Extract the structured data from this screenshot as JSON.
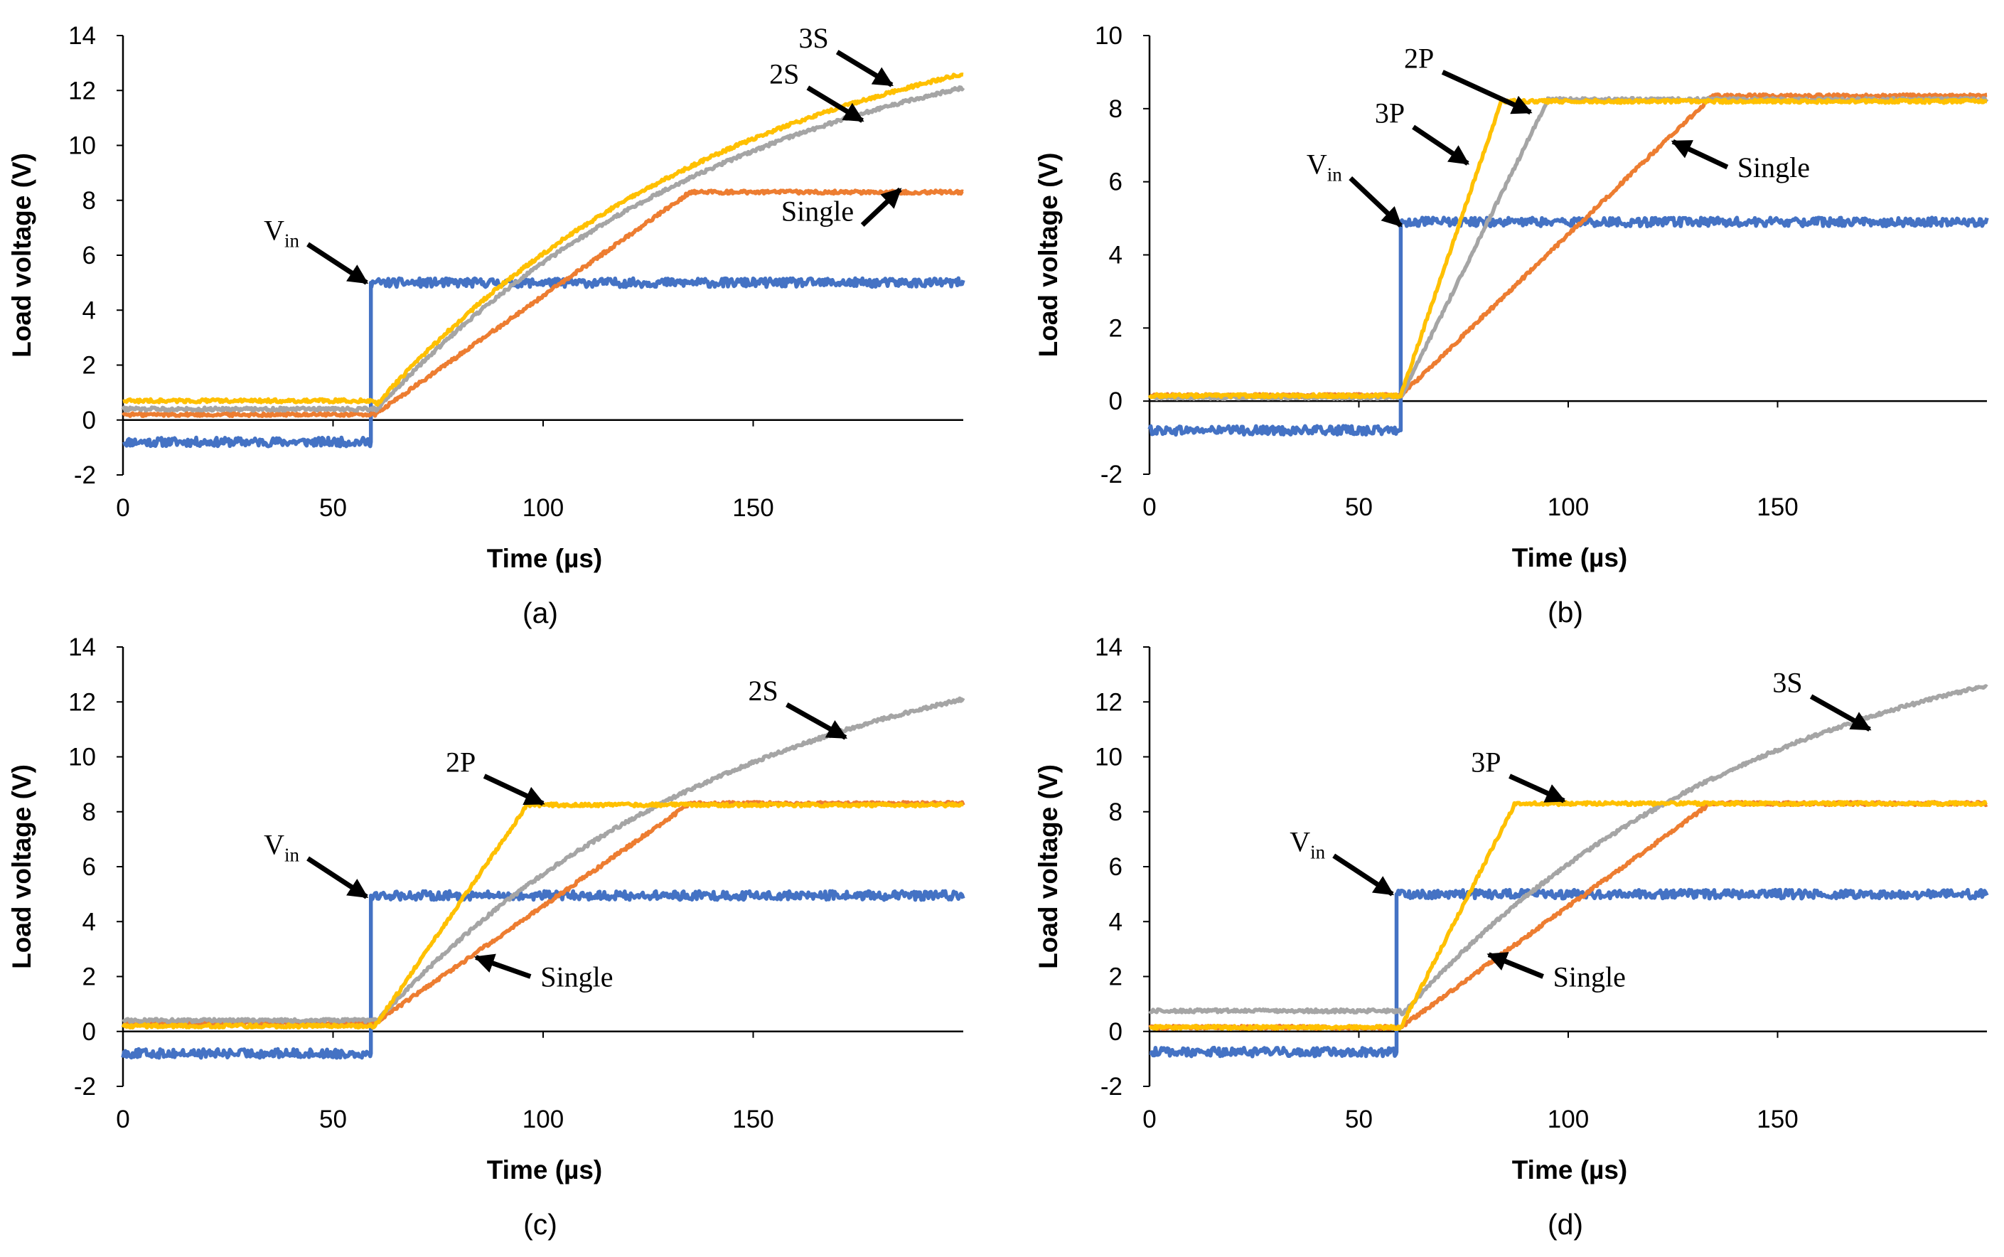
{
  "chart_data": [
    {
      "type": "line",
      "caption": "(a)",
      "xlabel": "Time (µs)",
      "ylabel": "Load voltage (V)",
      "xlim": [
        0,
        200
      ],
      "ylim": [
        -2,
        14
      ],
      "xticks": [
        0,
        50,
        100,
        150
      ],
      "yticks": [
        -2,
        0,
        2,
        4,
        6,
        8,
        10,
        12,
        14
      ],
      "series": [
        {
          "name": "Vin",
          "color": "#4472C4",
          "pre": -0.8,
          "step_at": 59,
          "final": 5.0,
          "kind": "step"
        },
        {
          "name": "Single",
          "color": "#ED7D31",
          "pre": 0.2,
          "start": 60,
          "kind": "ramp",
          "x_end": 135,
          "v_end": 8.3,
          "final": 8.3
        },
        {
          "name": "2S",
          "color": "#A5A5A5",
          "pre": 0.4,
          "start": 60,
          "kind": "rise",
          "v_start": 0.3,
          "x_end": 200,
          "v_end": 12.1
        },
        {
          "name": "3S",
          "color": "#FFC000",
          "pre": 0.7,
          "start": 60,
          "kind": "rise",
          "v_start": 0.5,
          "x_end": 200,
          "v_end": 12.6
        }
      ],
      "annotations": [
        {
          "text": "3S",
          "sub": "",
          "at": [
            183,
            12.2
          ],
          "from": [
            170,
            13.4
          ]
        },
        {
          "text": "2S",
          "sub": "",
          "at": [
            176,
            10.9
          ],
          "from": [
            163,
            12.1
          ]
        },
        {
          "text": "Single",
          "sub": "",
          "at": [
            185,
            8.4
          ],
          "from": [
            176,
            7.1
          ]
        },
        {
          "text": "V",
          "sub": "in",
          "at": [
            58,
            5.0
          ],
          "from": [
            44,
            6.4
          ]
        }
      ]
    },
    {
      "type": "line",
      "caption": "(b)",
      "xlabel": "Time (µs)",
      "ylabel": "Load voltage (V)",
      "xlim": [
        0,
        200
      ],
      "ylim": [
        -2,
        10
      ],
      "xticks": [
        0,
        50,
        100,
        150
      ],
      "yticks": [
        -2,
        0,
        2,
        4,
        6,
        8,
        10
      ],
      "series": [
        {
          "name": "Vin",
          "color": "#4472C4",
          "pre": -0.8,
          "step_at": 60,
          "final": 4.9,
          "kind": "step"
        },
        {
          "name": "Single",
          "color": "#ED7D31",
          "pre": 0.15,
          "start": 60,
          "kind": "ramp",
          "x_end": 134,
          "v_end": 8.3,
          "final": 8.35
        },
        {
          "name": "3P",
          "color": "#A5A5A5",
          "pre": 0.1,
          "start": 60,
          "kind": "ramp",
          "x_end": 95,
          "v_end": 8.2,
          "final": 8.25
        },
        {
          "name": "2P",
          "color": "#FFC000",
          "pre": 0.15,
          "start": 60,
          "kind": "ramp",
          "x_end": 84,
          "v_end": 8.2,
          "final": 8.2
        }
      ],
      "annotations": [
        {
          "text": "2P",
          "sub": "",
          "at": [
            91,
            7.9
          ],
          "from": [
            70,
            9.0
          ]
        },
        {
          "text": "3P",
          "sub": "",
          "at": [
            76,
            6.5
          ],
          "from": [
            63,
            7.5
          ]
        },
        {
          "text": "Single",
          "sub": "",
          "at": [
            125,
            7.1
          ],
          "from": [
            138,
            6.4
          ]
        },
        {
          "text": "V",
          "sub": "in",
          "at": [
            60,
            4.8
          ],
          "from": [
            48,
            6.1
          ]
        }
      ]
    },
    {
      "type": "line",
      "caption": "(c)",
      "xlabel": "Time (µs)",
      "ylabel": "Load voltage (V)",
      "xlim": [
        0,
        200
      ],
      "ylim": [
        -2,
        14
      ],
      "xticks": [
        0,
        50,
        100,
        150
      ],
      "yticks": [
        -2,
        0,
        2,
        4,
        6,
        8,
        10,
        12,
        14
      ],
      "series": [
        {
          "name": "Vin",
          "color": "#4472C4",
          "pre": -0.8,
          "step_at": 59,
          "final": 4.95,
          "kind": "step"
        },
        {
          "name": "Single",
          "color": "#ED7D31",
          "pre": 0.3,
          "start": 60,
          "kind": "ramp",
          "x_end": 135,
          "v_end": 8.3,
          "final": 8.3
        },
        {
          "name": "2S",
          "color": "#A5A5A5",
          "pre": 0.4,
          "start": 60,
          "kind": "rise",
          "v_start": 0.3,
          "x_end": 200,
          "v_end": 12.1
        },
        {
          "name": "2P",
          "color": "#FFC000",
          "pre": 0.2,
          "start": 60,
          "kind": "ramp",
          "x_end": 96,
          "v_end": 8.2,
          "final": 8.25
        }
      ],
      "annotations": [
        {
          "text": "2S",
          "sub": "",
          "at": [
            172,
            10.7
          ],
          "from": [
            158,
            11.9
          ]
        },
        {
          "text": "2P",
          "sub": "",
          "at": [
            100,
            8.3
          ],
          "from": [
            86,
            9.3
          ]
        },
        {
          "text": "Single",
          "sub": "",
          "at": [
            84,
            2.7
          ],
          "from": [
            97,
            2.0
          ]
        },
        {
          "text": "V",
          "sub": "in",
          "at": [
            58,
            4.9
          ],
          "from": [
            44,
            6.3
          ]
        }
      ]
    },
    {
      "type": "line",
      "caption": "(d)",
      "xlabel": "Time (µs)",
      "ylabel": "Load voltage (V)",
      "xlim": [
        0,
        200
      ],
      "ylim": [
        -2,
        14
      ],
      "xticks": [
        0,
        50,
        100,
        150
      ],
      "yticks": [
        -2,
        0,
        2,
        4,
        6,
        8,
        10,
        12,
        14
      ],
      "series": [
        {
          "name": "Vin",
          "color": "#4472C4",
          "pre": -0.75,
          "step_at": 59,
          "final": 5.0,
          "kind": "step"
        },
        {
          "name": "Single",
          "color": "#ED7D31",
          "pre": 0.15,
          "start": 60,
          "kind": "ramp",
          "x_end": 134,
          "v_end": 8.3,
          "final": 8.3
        },
        {
          "name": "3S",
          "color": "#A5A5A5",
          "pre": 0.75,
          "start": 60,
          "kind": "rise",
          "v_start": 0.55,
          "x_end": 200,
          "v_end": 12.6
        },
        {
          "name": "3P",
          "color": "#FFC000",
          "pre": 0.15,
          "start": 60,
          "kind": "ramp",
          "x_end": 87,
          "v_end": 8.2,
          "final": 8.3
        }
      ],
      "annotations": [
        {
          "text": "3S",
          "sub": "",
          "at": [
            172,
            11.0
          ],
          "from": [
            158,
            12.2
          ]
        },
        {
          "text": "3P",
          "sub": "",
          "at": [
            99,
            8.4
          ],
          "from": [
            86,
            9.3
          ]
        },
        {
          "text": "Single",
          "sub": "",
          "at": [
            81,
            2.8
          ],
          "from": [
            94,
            2.0
          ]
        },
        {
          "text": "V",
          "sub": "in",
          "at": [
            58,
            5.0
          ],
          "from": [
            44,
            6.4
          ]
        }
      ]
    }
  ]
}
